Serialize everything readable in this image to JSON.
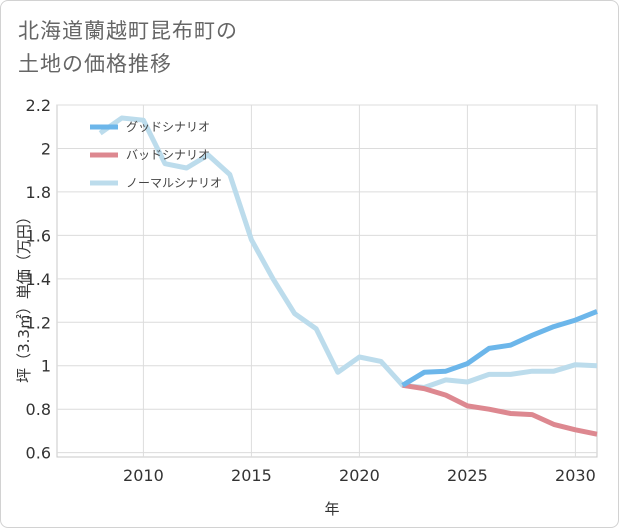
{
  "title_lines": [
    "北海道蘭越町昆布町の",
    "土地の価格推移"
  ],
  "chart_data": {
    "type": "line",
    "xlabel": "年",
    "ylabel": "坪（3.3㎡）単価（万円）",
    "xlim": [
      2006,
      2031
    ],
    "ylim": [
      0.58,
      2.2
    ],
    "x_ticks": [
      2010,
      2015,
      2020,
      2025,
      2030
    ],
    "y_ticks": [
      0.6,
      0.8,
      1,
      1.2,
      1.4,
      1.6,
      1.8,
      2,
      2.2
    ],
    "y_tick_labels": [
      "0.6",
      "0.8",
      "1",
      "1.2",
      "1.4",
      "1.6",
      "1.8",
      "2",
      "2.2"
    ],
    "grid": true,
    "legend_position": "top-left",
    "series": [
      {
        "name": "グッドシナリオ",
        "color": "#6cb6ea",
        "x": [
          2022,
          2023,
          2024,
          2025,
          2026,
          2027,
          2028,
          2029,
          2030,
          2031
        ],
        "y": [
          0.91,
          0.97,
          0.975,
          1.01,
          1.08,
          1.095,
          1.14,
          1.18,
          1.21,
          1.25
        ]
      },
      {
        "name": "バッドシナリオ",
        "color": "#dd8890",
        "x": [
          2022,
          2023,
          2024,
          2025,
          2026,
          2027,
          2028,
          2029,
          2030,
          2031
        ],
        "y": [
          0.91,
          0.895,
          0.865,
          0.815,
          0.8,
          0.78,
          0.775,
          0.73,
          0.705,
          0.685
        ]
      },
      {
        "name": "ノーマルシナリオ",
        "color": "#bcdcec",
        "x": [
          2008,
          2009,
          2010,
          2011,
          2012,
          2013,
          2014,
          2015,
          2016,
          2017,
          2018,
          2019,
          2020,
          2021,
          2022,
          2023,
          2024,
          2025,
          2026,
          2027,
          2028,
          2029,
          2030,
          2031
        ],
        "y": [
          2.07,
          2.14,
          2.13,
          1.93,
          1.91,
          1.97,
          1.88,
          1.58,
          1.4,
          1.24,
          1.17,
          0.97,
          1.04,
          1.02,
          0.91,
          0.9,
          0.935,
          0.925,
          0.96,
          0.96,
          0.975,
          0.975,
          1.005,
          1.0
        ]
      }
    ]
  }
}
